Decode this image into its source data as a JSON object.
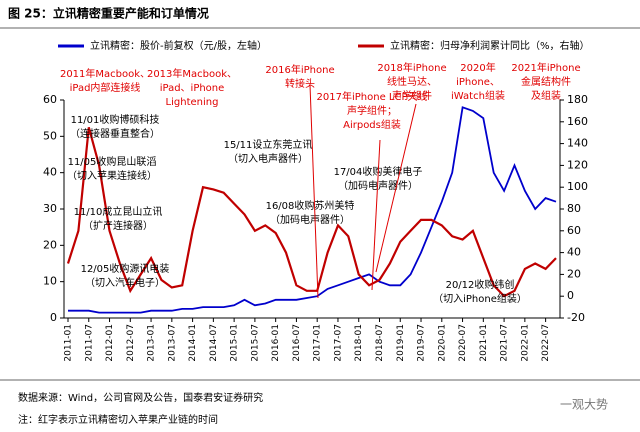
{
  "chart_data": {
    "type": "line",
    "title": "图 25：立讯精密重要产能和订单情况",
    "x": [
      "2011-01",
      "2011-04",
      "2011-07",
      "2011-10",
      "2012-01",
      "2012-04",
      "2012-07",
      "2012-10",
      "2013-01",
      "2013-04",
      "2013-07",
      "2013-10",
      "2014-01",
      "2014-04",
      "2014-07",
      "2014-10",
      "2015-01",
      "2015-04",
      "2015-07",
      "2015-10",
      "2016-01",
      "2016-04",
      "2016-07",
      "2016-10",
      "2017-01",
      "2017-04",
      "2017-07",
      "2017-10",
      "2018-01",
      "2018-04",
      "2018-07",
      "2018-10",
      "2019-01",
      "2019-04",
      "2019-07",
      "2019-10",
      "2020-01",
      "2020-04",
      "2020-07",
      "2020-10",
      "2021-01",
      "2021-04",
      "2021-07",
      "2021-10",
      "2022-01",
      "2022-04",
      "2022-07",
      "2022-10"
    ],
    "xticks": [
      "2011-01",
      "2011-07",
      "2012-01",
      "2012-07",
      "2013-01",
      "2013-07",
      "2014-01",
      "2014-07",
      "2015-01",
      "2015-07",
      "2016-01",
      "2016-07",
      "2017-01",
      "2017-07",
      "2018-01",
      "2018-07",
      "2019-01",
      "2019-07",
      "2020-01",
      "2020-07",
      "2021-01",
      "2021-07",
      "2022-01",
      "2022-07"
    ],
    "series": [
      {
        "name": "立讯精密：股价-前复权（元/股，左轴）",
        "color": "#0000cc",
        "values": [
          2,
          2,
          2,
          1.5,
          1.5,
          1.5,
          1.5,
          1.5,
          2,
          2,
          2,
          2.5,
          2.5,
          3,
          3,
          3,
          3.5,
          5,
          3.5,
          4,
          5,
          5,
          5,
          5.5,
          6,
          8,
          9,
          10,
          11,
          12,
          10,
          9,
          9,
          12,
          18,
          25,
          32,
          40,
          58,
          57,
          55,
          40,
          35,
          42,
          35,
          30,
          33,
          32
        ]
      },
      {
        "name": "立讯精密：归母净利润累计同比（%，右轴）",
        "color": "#c00000",
        "axis": "y2",
        "values": [
          30,
          60,
          155,
          120,
          60,
          30,
          5,
          20,
          35,
          15,
          8,
          10,
          60,
          100,
          98,
          95,
          85,
          75,
          60,
          65,
          58,
          40,
          10,
          5,
          5,
          40,
          65,
          55,
          20,
          10,
          15,
          30,
          50,
          60,
          70,
          70,
          65,
          55,
          52,
          60,
          35,
          10,
          0,
          5,
          25,
          30,
          25,
          35
        ]
      }
    ],
    "ylim": [
      0,
      60
    ],
    "yticks": [
      0,
      10,
      20,
      30,
      40,
      50,
      60
    ],
    "y2lim": [
      -20,
      180
    ],
    "y2ticks": [
      -20,
      0,
      20,
      40,
      60,
      80,
      100,
      120,
      140,
      160,
      180
    ],
    "annotations": [
      {
        "lines": [
          "2011年Macbook、",
          "iPad内部连接线"
        ],
        "color": "#e00000"
      },
      {
        "lines": [
          "2013年Macbook、",
          "iPad、iPhone",
          "Lightening"
        ],
        "color": "#e00000"
      },
      {
        "lines": [
          "2016年iPhone",
          "转接头"
        ],
        "color": "#e00000"
      },
      {
        "lines": [
          "2017年iPhone LCP天线",
          "声学组件；",
          "Airpods组装"
        ],
        "color": "#e00000"
      },
      {
        "lines": [
          "2018年iPhone",
          "线性马达、",
          "声学组件"
        ],
        "color": "#e00000"
      },
      {
        "lines": [
          "2020年",
          "iPhone、",
          "iWatch组装"
        ],
        "color": "#e00000"
      },
      {
        "lines": [
          "2021年iPhone",
          "金属结构件",
          "及组装"
        ],
        "color": "#e00000"
      },
      {
        "lines": [
          "11/01收购博硕科技",
          "（连接器垂直整合）"
        ],
        "color": "#000000"
      },
      {
        "lines": [
          "11/05收购昆山联滔",
          "（切入苹果连接线）"
        ],
        "color": "#000000"
      },
      {
        "lines": [
          "11/10成立昆山立讯",
          "（扩产连接器）"
        ],
        "color": "#000000"
      },
      {
        "lines": [
          "12/05收购源讯电装",
          "（切入汽车电子）"
        ],
        "color": "#000000"
      },
      {
        "lines": [
          "15/11设立东莞立讯",
          "（切入电声器件）"
        ],
        "color": "#000000"
      },
      {
        "lines": [
          "16/08收购苏州美特",
          "（加码电声器件）"
        ],
        "color": "#000000"
      },
      {
        "lines": [
          "17/04收购美律电子",
          "（加码电声器件）"
        ],
        "color": "#000000"
      },
      {
        "lines": [
          "20/12收购纬创",
          "（切入iPhone组装）"
        ],
        "color": "#000000"
      }
    ],
    "source": "数据来源：Wind，公司官网及公告，国泰君安证券研究",
    "note": "注：红字表示立讯精密切入苹果产业链的时间",
    "watermark": "一观大势"
  }
}
